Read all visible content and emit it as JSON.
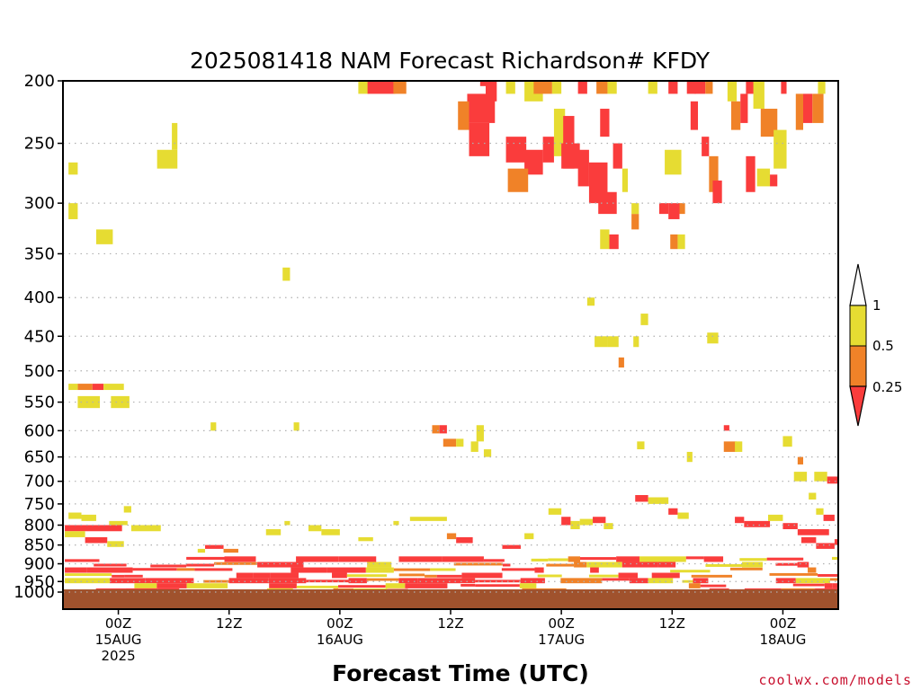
{
  "chart_data": {
    "type": "heatmap",
    "title": "2025081418 NAM Forecast Richardson# KFDY",
    "xlabel": "Forecast Time (UTC)",
    "ylabel": "",
    "y_scale": "log-pressure",
    "y_range_hPa": [
      1000,
      200
    ],
    "y_ticks": [
      200,
      250,
      300,
      350,
      400,
      450,
      500,
      550,
      600,
      650,
      700,
      750,
      800,
      850,
      900,
      950,
      1000
    ],
    "x_range_hours": [
      -6,
      78
    ],
    "x_ticks": [
      {
        "hour": 0,
        "lines": [
          "00Z",
          "15AUG",
          "2025"
        ]
      },
      {
        "hour": 12,
        "lines": [
          "12Z"
        ]
      },
      {
        "hour": 24,
        "lines": [
          "00Z",
          "16AUG"
        ]
      },
      {
        "hour": 36,
        "lines": [
          "12Z"
        ]
      },
      {
        "hour": 48,
        "lines": [
          "00Z",
          "17AUG"
        ]
      },
      {
        "hour": 60,
        "lines": [
          "12Z"
        ]
      },
      {
        "hour": 72,
        "lines": [
          "00Z",
          "18AUG"
        ]
      }
    ],
    "grid": "dotted horizontal lines at pressure ticks",
    "legend": {
      "placement": "right",
      "labels": [
        "1",
        "0.5",
        "0.25"
      ],
      "bins": [
        {
          "range": "0.5-1",
          "color": "#e6dc32"
        },
        {
          "range": "0.25-0.5",
          "color": "#f08228"
        },
        {
          "range": "<0.25",
          "color": "#fa3c3c"
        }
      ]
    },
    "colors": {
      "yellow": "#e6dc32",
      "orange": "#f08228",
      "red": "#fa3c3c",
      "ground": "#a0522d"
    },
    "ground_level_hPa": 990,
    "cells": [
      [
        -5.4,
        -4.4,
        300,
        315,
        "y"
      ],
      [
        -5.4,
        -4.4,
        275,
        265,
        "y"
      ],
      [
        -2.4,
        -0.6,
        325,
        340,
        "y"
      ],
      [
        4.2,
        6.4,
        255,
        270,
        "y"
      ],
      [
        5.8,
        6.4,
        235,
        255,
        "y"
      ],
      [
        17.8,
        18.6,
        365,
        380,
        "y"
      ],
      [
        26,
        27.2,
        200,
        215,
        "y"
      ],
      [
        27,
        30,
        200,
        215,
        "r"
      ],
      [
        29.8,
        31.2,
        200,
        215,
        "o"
      ],
      [
        37.8,
        40.8,
        215,
        235,
        "r"
      ],
      [
        36.8,
        38,
        220,
        240,
        "o"
      ],
      [
        38,
        40.2,
        235,
        260,
        "r"
      ],
      [
        39.8,
        41,
        205,
        220,
        "r"
      ],
      [
        39.2,
        40.2,
        200,
        210,
        "r"
      ],
      [
        42,
        43,
        200,
        215,
        "y"
      ],
      [
        44,
        46,
        200,
        220,
        "y"
      ],
      [
        45,
        47,
        200,
        215,
        "o"
      ],
      [
        47,
        48,
        200,
        215,
        "y"
      ],
      [
        42,
        44.2,
        245,
        265,
        "r"
      ],
      [
        44,
        46,
        255,
        275,
        "r"
      ],
      [
        46,
        47.2,
        245,
        265,
        "r"
      ],
      [
        42.2,
        44.4,
        270,
        290,
        "o"
      ],
      [
        47.2,
        48.4,
        225,
        260,
        "y"
      ],
      [
        48.2,
        49.4,
        230,
        270,
        "r"
      ],
      [
        48,
        50,
        250,
        270,
        "r"
      ],
      [
        49.8,
        51,
        255,
        285,
        "r"
      ],
      [
        51,
        53,
        265,
        300,
        "r"
      ],
      [
        52,
        54,
        290,
        310,
        "r"
      ],
      [
        49.8,
        50.8,
        200,
        215,
        "r"
      ],
      [
        51.8,
        53,
        200,
        215,
        "o"
      ],
      [
        53,
        54,
        200,
        215,
        "y"
      ],
      [
        52.2,
        53.2,
        225,
        245,
        "r"
      ],
      [
        53.6,
        54.6,
        250,
        270,
        "r"
      ],
      [
        50.8,
        51.6,
        400,
        410,
        "y"
      ],
      [
        51.6,
        53,
        450,
        465,
        "y"
      ],
      [
        53,
        54.2,
        450,
        465,
        "y"
      ],
      [
        54.2,
        54.8,
        480,
        495,
        "o"
      ],
      [
        55.8,
        56.4,
        450,
        465,
        "y"
      ],
      [
        55.6,
        56.4,
        310,
        325,
        "o"
      ],
      [
        55.6,
        56.4,
        300,
        310,
        "y"
      ],
      [
        53.2,
        54.2,
        330,
        345,
        "r"
      ],
      [
        52.2,
        53.2,
        325,
        345,
        "y"
      ],
      [
        54.6,
        55.2,
        270,
        290,
        "y"
      ],
      [
        56.6,
        57.4,
        420,
        435,
        "y"
      ],
      [
        57.4,
        58.4,
        200,
        215,
        "y"
      ],
      [
        58.6,
        59.6,
        300,
        310,
        "r"
      ],
      [
        59.6,
        60.8,
        300,
        315,
        "r"
      ],
      [
        60.8,
        61.4,
        300,
        310,
        "o"
      ],
      [
        59.8,
        60.6,
        330,
        345,
        "o"
      ],
      [
        60.6,
        61.4,
        330,
        345,
        "y"
      ],
      [
        59.2,
        61,
        255,
        275,
        "y"
      ],
      [
        59.6,
        60.6,
        200,
        215,
        "r"
      ],
      [
        61.6,
        62.6,
        200,
        215,
        "r"
      ],
      [
        62.4,
        63.6,
        200,
        215,
        "r"
      ],
      [
        63.6,
        64.4,
        200,
        215,
        "o"
      ],
      [
        62,
        62.8,
        220,
        240,
        "r"
      ],
      [
        63.2,
        64,
        245,
        260,
        "r"
      ],
      [
        64,
        65,
        260,
        290,
        "o"
      ],
      [
        64.4,
        65.4,
        280,
        300,
        "r"
      ],
      [
        63.8,
        65,
        445,
        460,
        "y"
      ],
      [
        66,
        67,
        200,
        220,
        "y"
      ],
      [
        66.4,
        67.4,
        220,
        240,
        "o"
      ],
      [
        67.4,
        68.2,
        215,
        235,
        "r"
      ],
      [
        68,
        69,
        200,
        215,
        "r"
      ],
      [
        68.8,
        70,
        205,
        225,
        "y"
      ],
      [
        69.6,
        71.4,
        225,
        245,
        "o"
      ],
      [
        71,
        72.4,
        240,
        270,
        "y"
      ],
      [
        68,
        69,
        260,
        290,
        "r"
      ],
      [
        69.2,
        70.6,
        270,
        285,
        "y"
      ],
      [
        70.6,
        71.4,
        275,
        285,
        "r"
      ],
      [
        71.8,
        72.4,
        200,
        215,
        "r"
      ],
      [
        73.4,
        74.2,
        215,
        240,
        "o"
      ],
      [
        74.2,
        75.2,
        215,
        235,
        "r"
      ],
      [
        75.2,
        76.4,
        215,
        235,
        "o"
      ],
      [
        75.8,
        76.6,
        200,
        215,
        "y"
      ],
      [
        -4.4,
        -2.8,
        520,
        530,
        "o"
      ],
      [
        -2.8,
        -1.6,
        520,
        530,
        "r"
      ],
      [
        -1.6,
        0.6,
        520,
        530,
        "y"
      ],
      [
        -5.4,
        -4.4,
        520,
        530,
        "y"
      ],
      [
        -4.4,
        -2,
        540,
        560,
        "y"
      ],
      [
        -0.8,
        1.2,
        540,
        560,
        "y"
      ],
      [
        10,
        10.6,
        585,
        600,
        "y"
      ],
      [
        19,
        19.6,
        585,
        600,
        "y"
      ],
      [
        34,
        34.8,
        590,
        605,
        "o"
      ],
      [
        34.8,
        35.6,
        590,
        605,
        "r"
      ],
      [
        35.2,
        36.6,
        615,
        630,
        "o"
      ],
      [
        36.6,
        37.4,
        615,
        630,
        "y"
      ],
      [
        38.2,
        39,
        620,
        640,
        "y"
      ],
      [
        38.8,
        39.6,
        590,
        620,
        "y"
      ],
      [
        39.6,
        40.4,
        635,
        650,
        "y"
      ],
      [
        56.2,
        57,
        620,
        635,
        "y"
      ],
      [
        61.6,
        62.2,
        640,
        660,
        "y"
      ],
      [
        65.6,
        66.2,
        590,
        600,
        "r"
      ],
      [
        65.6,
        67,
        620,
        640,
        "o"
      ],
      [
        66.8,
        67.6,
        620,
        640,
        "y"
      ],
      [
        72,
        73,
        610,
        630,
        "y"
      ],
      [
        73.6,
        74.2,
        650,
        665,
        "o"
      ],
      [
        73.2,
        74.6,
        680,
        700,
        "y"
      ],
      [
        75.4,
        76.8,
        680,
        700,
        "y"
      ],
      [
        76.8,
        78,
        690,
        705,
        "r"
      ],
      [
        -5.8,
        0.4,
        800,
        815,
        "r"
      ],
      [
        -5.8,
        -3.6,
        815,
        830,
        "y"
      ],
      [
        -3.6,
        -1.2,
        830,
        845,
        "r"
      ],
      [
        -1.2,
        0.6,
        840,
        855,
        "y"
      ],
      [
        -5.4,
        -4,
        770,
        785,
        "y"
      ],
      [
        -4,
        -2.4,
        775,
        790,
        "y"
      ],
      [
        -1,
        1,
        790,
        800,
        "y"
      ],
      [
        1.4,
        4.6,
        800,
        815,
        "y"
      ],
      [
        0.6,
        1.4,
        755,
        770,
        "y"
      ],
      [
        8.6,
        9.4,
        860,
        870,
        "y"
      ],
      [
        9.4,
        11.4,
        850,
        860,
        "r"
      ],
      [
        11.4,
        13,
        860,
        870,
        "o"
      ],
      [
        16,
        17.6,
        810,
        825,
        "y"
      ],
      [
        18,
        18.6,
        790,
        800,
        "y"
      ],
      [
        20.6,
        22,
        800,
        815,
        "y"
      ],
      [
        22,
        24,
        810,
        825,
        "y"
      ],
      [
        26,
        27.6,
        830,
        840,
        "y"
      ],
      [
        29.8,
        30.4,
        790,
        800,
        "y"
      ],
      [
        31.6,
        35.6,
        780,
        790,
        "y"
      ],
      [
        35.6,
        36.6,
        820,
        835,
        "o"
      ],
      [
        36.6,
        38.4,
        830,
        845,
        "r"
      ],
      [
        41.6,
        43.6,
        850,
        860,
        "r"
      ],
      [
        44,
        45,
        820,
        835,
        "y"
      ],
      [
        46.6,
        48,
        760,
        775,
        "y"
      ],
      [
        48,
        49,
        780,
        800,
        "r"
      ],
      [
        49,
        50,
        790,
        810,
        "y"
      ],
      [
        50,
        51.4,
        785,
        800,
        "y"
      ],
      [
        51.4,
        52.8,
        780,
        795,
        "r"
      ],
      [
        52.6,
        53.6,
        795,
        810,
        "y"
      ],
      [
        56,
        57.4,
        730,
        745,
        "r"
      ],
      [
        57.4,
        59.6,
        735,
        750,
        "y"
      ],
      [
        59.6,
        60.6,
        760,
        775,
        "r"
      ],
      [
        60.6,
        61.8,
        770,
        785,
        "y"
      ],
      [
        66.8,
        67.8,
        780,
        795,
        "r"
      ],
      [
        67.8,
        70.6,
        790,
        805,
        "r"
      ],
      [
        70.4,
        72,
        775,
        790,
        "y"
      ],
      [
        72,
        73.6,
        795,
        810,
        "r"
      ],
      [
        73.6,
        77,
        810,
        825,
        "r"
      ],
      [
        74,
        75.6,
        830,
        845,
        "r"
      ],
      [
        75.6,
        77.6,
        845,
        860,
        "r"
      ],
      [
        77.6,
        78,
        835,
        850,
        "r"
      ],
      [
        75.6,
        76.4,
        760,
        775,
        "y"
      ],
      [
        76.4,
        77.6,
        775,
        790,
        "r"
      ],
      [
        74.8,
        75.6,
        725,
        740,
        "y"
      ],
      [
        -5.8,
        78,
        880,
        895,
        "s"
      ],
      [
        -5.8,
        78,
        895,
        910,
        "s"
      ],
      [
        -5.8,
        78,
        910,
        925,
        "s"
      ],
      [
        -5.8,
        78,
        925,
        940,
        "s"
      ],
      [
        -5.8,
        78,
        940,
        955,
        "s"
      ],
      [
        -5.8,
        78,
        955,
        970,
        "s"
      ],
      [
        -5.8,
        78,
        970,
        985,
        "s"
      ]
    ]
  },
  "credit": "coolwx.com/models"
}
